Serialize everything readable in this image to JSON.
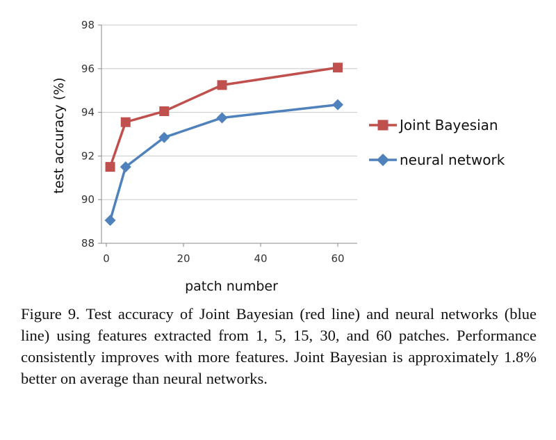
{
  "chart_data": {
    "type": "line",
    "title": "",
    "xlabel": "patch number",
    "ylabel": "test accuracy (%)",
    "xlim": [
      0,
      60
    ],
    "ylim": [
      88,
      98
    ],
    "xticks": [
      0,
      20,
      40,
      60
    ],
    "yticks": [
      88,
      90,
      92,
      94,
      96,
      98
    ],
    "grid": "horizontal",
    "legend_position": "right",
    "series": [
      {
        "name": "Joint Bayesian",
        "color": "#C0504D",
        "marker": "square",
        "x": [
          1,
          5,
          15,
          30,
          60
        ],
        "y": [
          91.5,
          93.55,
          94.05,
          95.25,
          96.05
        ]
      },
      {
        "name": "neural network",
        "color": "#4F81BD",
        "marker": "diamond",
        "x": [
          1,
          5,
          15,
          30,
          60
        ],
        "y": [
          89.05,
          91.5,
          92.85,
          93.75,
          94.35
        ]
      }
    ]
  },
  "caption": "Figure 9. Test accuracy of Joint Bayesian (red line) and neural networks (blue line) using features extracted from 1, 5, 15, 30, and 60 patches. Performance consistently improves with more features. Joint Bayesian is approximately 1.8% better on average than neural networks."
}
